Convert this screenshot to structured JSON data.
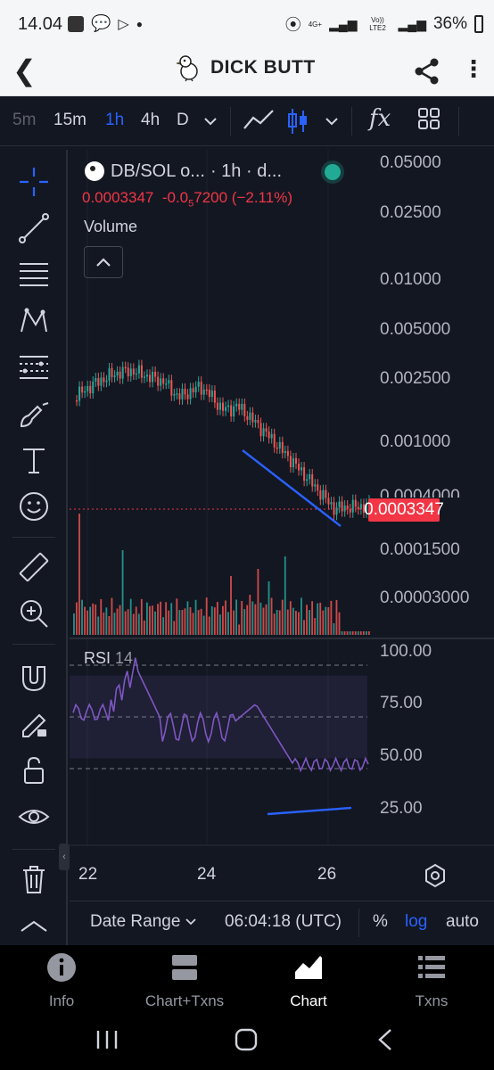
{
  "status_bar": {
    "time": "14.04",
    "network_top": "4G+",
    "network_mid": "Vo)) LTE2",
    "battery": "36%"
  },
  "header": {
    "title": "DICK BUTT",
    "icons": [
      "back-arrow-icon",
      "share-icon",
      "more-vert-icon"
    ]
  },
  "toolbar": {
    "timeframes": [
      "5m",
      "15m",
      "1h",
      "4h",
      "D"
    ],
    "active_timeframe": "1h",
    "indicator_label": "fx"
  },
  "legend": {
    "symbol": "DB/SOL o...",
    "interval": "· 1h · d...",
    "price": "0.0003347",
    "change": "-0.0",
    "change_sub": "5",
    "change_tail": "7200 (−2.11%)",
    "volume_label": "Volume"
  },
  "price_axis": [
    "0.05000",
    "0.02500",
    "0.01000",
    "0.005000",
    "0.002500",
    "0.001000",
    "0.0003347",
    "0.0001500",
    "0.00003000"
  ],
  "price_axis_partial": "0.0004000",
  "rsi": {
    "label": "RSI",
    "period": "14",
    "axis": [
      "100.00",
      "75.00",
      "50.00",
      "25.00"
    ]
  },
  "time_axis": [
    "22",
    "24",
    "26"
  ],
  "range_bar": {
    "date_range": "Date Range",
    "clock": "06:04:18 (UTC)",
    "percent": "%",
    "log": "log",
    "auto": "auto"
  },
  "bottom_nav": [
    "Info",
    "Chart+Txns",
    "Chart",
    "Txns"
  ],
  "active_nav": "Chart",
  "colors": {
    "background": "#131722",
    "up": "#26a69a",
    "down": "#ef5350",
    "accent": "#2962ff",
    "price_tag": "#f23645",
    "rsi_line": "#7e57c2"
  },
  "chart_data": {
    "type": "candlestick",
    "scale": "log",
    "last_price": 0.0003347,
    "x_ticks": [
      "22",
      "24",
      "26"
    ],
    "price_ticks": [
      0.05,
      0.025,
      0.01,
      0.005,
      0.0025,
      0.001,
      0.00015,
      3e-05
    ],
    "rsi_levels": [
      75,
      50,
      25
    ],
    "rsi_range": [
      0,
      100
    ]
  }
}
